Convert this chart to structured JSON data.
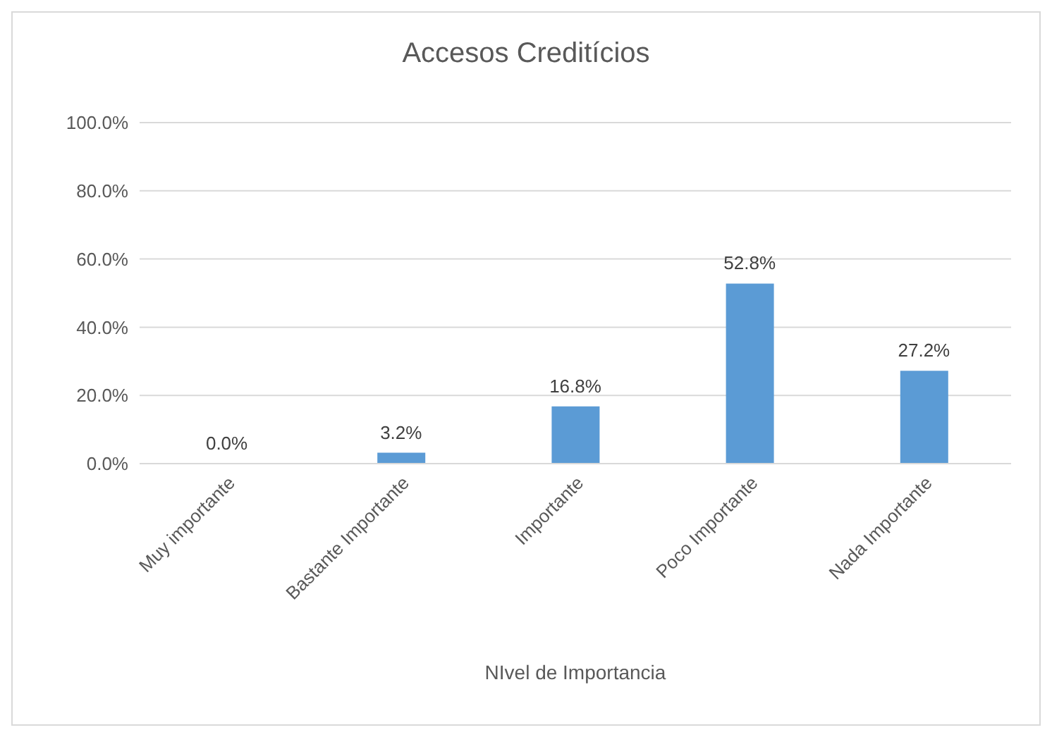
{
  "chart_data": {
    "type": "bar",
    "title": "Accesos Creditícios",
    "xlabel": "NIvel de Importancia",
    "categories": [
      "Muy importante",
      "Bastante Importante",
      "Importante",
      "Poco Importante",
      "Nada Importante"
    ],
    "values": [
      0,
      3.2,
      16.8,
      52.8,
      27.2
    ],
    "color": "#5b9bd5",
    "value_labels": [
      "0.0%",
      "3.2%",
      "16.8%",
      "52.8%",
      "27.2%"
    ],
    "ylim": [
      0,
      100
    ],
    "yticks": [
      {
        "value": 0,
        "label": "0.0%"
      },
      {
        "value": 20,
        "label": "20.0%"
      },
      {
        "value": 40,
        "label": "40.0%"
      },
      {
        "value": 60,
        "label": "60.0%"
      },
      {
        "value": 80,
        "label": "80.0%"
      },
      {
        "value": 100,
        "label": "100.0%"
      }
    ],
    "grid": "y"
  }
}
